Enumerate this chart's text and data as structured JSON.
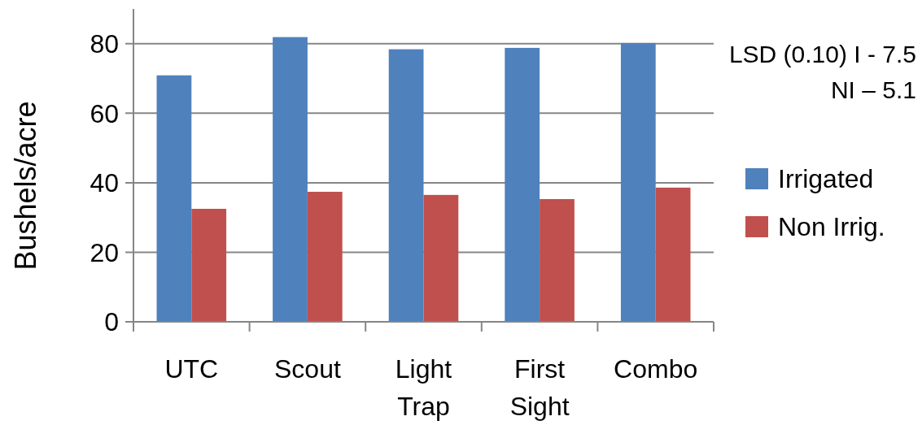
{
  "chart_data": {
    "type": "bar",
    "ylabel": "Bushels/acre",
    "categories": [
      "UTC",
      "Scout",
      "Light Trap",
      "First Sight",
      "Combo"
    ],
    "series": [
      {
        "name": "Irrigated",
        "color": "#4f81bd",
        "values": [
          70.9,
          81.9,
          78.4,
          78.8,
          80.2
        ]
      },
      {
        "name": "Non Irrig.",
        "color": "#c0504d",
        "values": [
          32.5,
          37.4,
          36.5,
          35.3,
          38.6
        ]
      }
    ],
    "ylim": [
      0,
      90
    ],
    "yticks": [
      0,
      20,
      40,
      60,
      80
    ],
    "grid": "y",
    "legend": "right",
    "annotations": [
      "LSD (0.10) I - 7.5",
      "NI – 5.1"
    ]
  }
}
